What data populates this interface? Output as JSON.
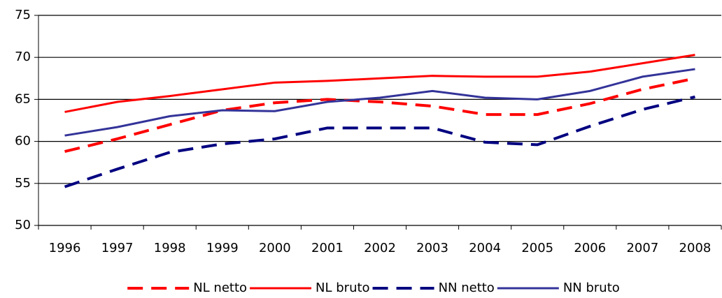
{
  "chart_data": {
    "type": "line",
    "categories": [
      "1996",
      "1997",
      "1998",
      "1999",
      "2000",
      "2001",
      "2002",
      "2003",
      "2004",
      "2005",
      "2006",
      "2007",
      "2008"
    ],
    "series": [
      {
        "name": "NL netto",
        "color": "#ff0000",
        "style": "dashed",
        "values": [
          58.8,
          60.3,
          62.0,
          63.7,
          64.6,
          65.0,
          64.7,
          64.2,
          63.2,
          63.2,
          64.5,
          66.2,
          67.5
        ]
      },
      {
        "name": "NL bruto",
        "color": "#ff0000",
        "style": "solid",
        "values": [
          63.5,
          64.7,
          65.4,
          66.2,
          67.0,
          67.2,
          67.5,
          67.8,
          67.7,
          67.7,
          68.3,
          69.3,
          70.3
        ]
      },
      {
        "name": "NN netto",
        "color": "#000080",
        "style": "dashed",
        "values": [
          54.6,
          56.7,
          58.7,
          59.7,
          60.3,
          61.6,
          61.6,
          61.6,
          59.9,
          59.6,
          61.8,
          63.8,
          65.3
        ]
      },
      {
        "name": "NN bruto",
        "color": "#333399",
        "style": "solid",
        "values": [
          60.7,
          61.7,
          63.0,
          63.7,
          63.6,
          64.7,
          65.2,
          66.0,
          65.2,
          65.0,
          66.0,
          67.7,
          68.6
        ]
      }
    ],
    "ylim": [
      50,
      75
    ],
    "yticks": [
      50,
      55,
      60,
      65,
      70,
      75
    ],
    "grid": true,
    "legend": "bottom"
  }
}
